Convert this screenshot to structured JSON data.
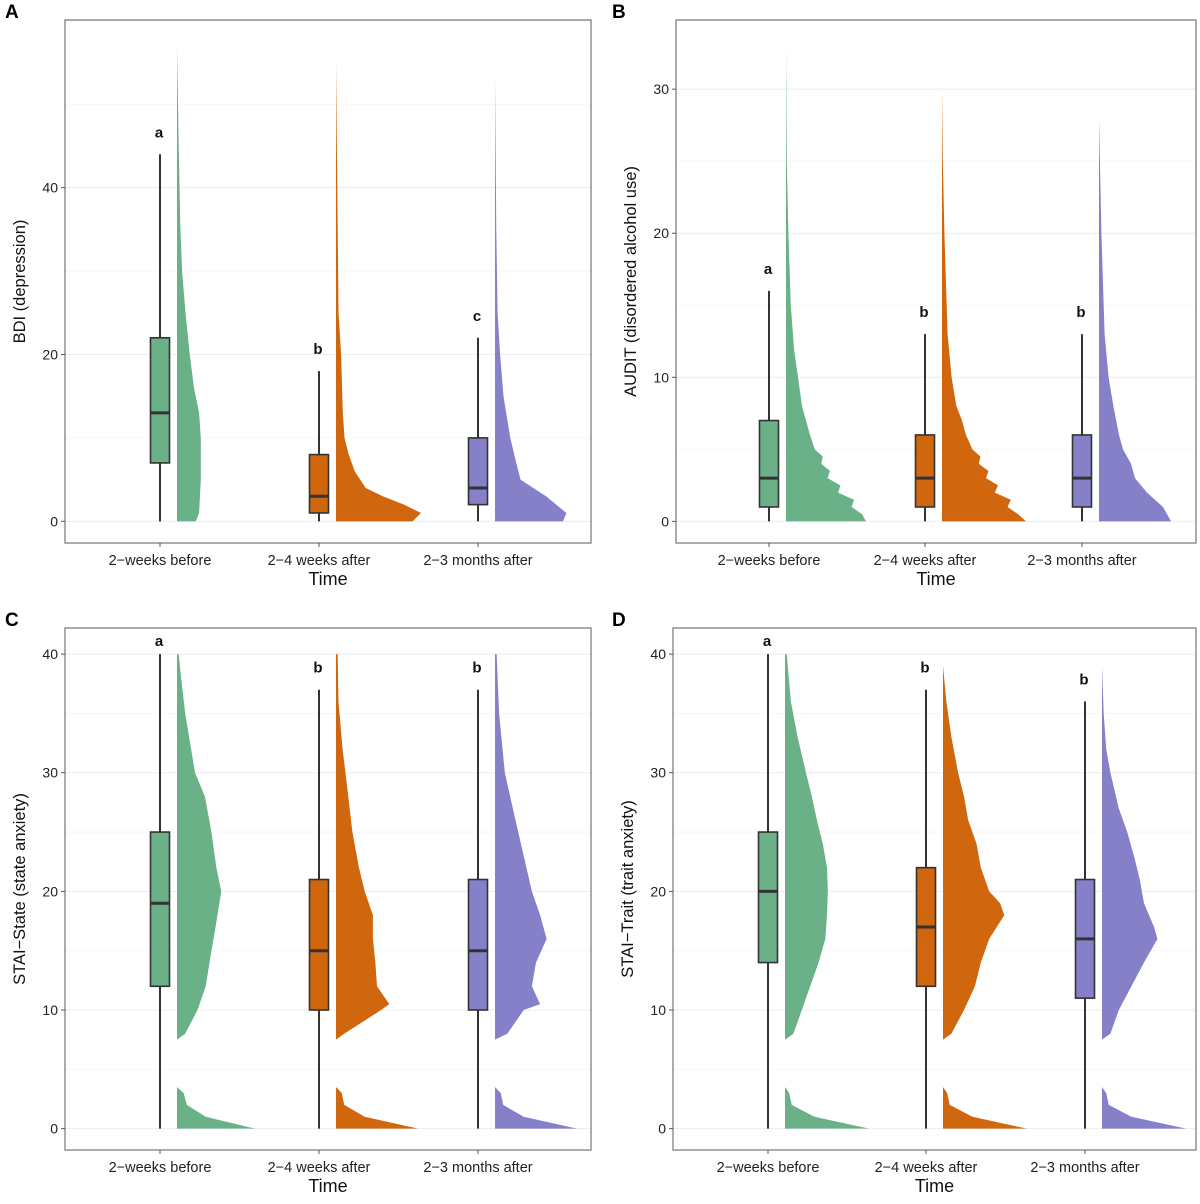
{
  "chart_data": [
    {
      "panel": "A",
      "type": "box+half-violin",
      "ylabel": "BDI (depression)",
      "xlabel": "Time",
      "categories": [
        "2−weeks before",
        "2−4 weeks after",
        "2−3 months after"
      ],
      "ylim": [
        -2.6,
        60.1
      ],
      "yticks": [
        0,
        20,
        40
      ],
      "grid": true,
      "colors": [
        "#6ab187",
        "#d0660e",
        "#8680c9"
      ],
      "letters": [
        "a",
        "b",
        "c"
      ],
      "boxes": [
        {
          "min": 0,
          "q1": 7,
          "median": 13,
          "q3": 22,
          "max": 44
        },
        {
          "min": 0,
          "q1": 1,
          "median": 3,
          "q3": 8,
          "max": 18
        },
        {
          "min": 0,
          "q1": 2,
          "median": 4,
          "q3": 10,
          "max": 22
        }
      ],
      "density": [
        [
          [
            0,
            0.22
          ],
          [
            1,
            0.26
          ],
          [
            5,
            0.28
          ],
          [
            10,
            0.28
          ],
          [
            13,
            0.26
          ],
          [
            16,
            0.2
          ],
          [
            20,
            0.15
          ],
          [
            25,
            0.1
          ],
          [
            30,
            0.06
          ],
          [
            35,
            0.04
          ],
          [
            45,
            0.02
          ],
          [
            57,
            0
          ]
        ],
        [
          [
            0,
            0.9
          ],
          [
            1,
            1.0
          ],
          [
            2,
            0.8
          ],
          [
            3,
            0.55
          ],
          [
            4,
            0.35
          ],
          [
            6,
            0.22
          ],
          [
            8,
            0.15
          ],
          [
            10,
            0.1
          ],
          [
            13,
            0.08
          ],
          [
            20,
            0.06
          ],
          [
            25,
            0.03
          ],
          [
            35,
            0.02
          ],
          [
            45,
            0.01
          ],
          [
            55,
            0
          ]
        ],
        [
          [
            0,
            0.8
          ],
          [
            1,
            0.84
          ],
          [
            3,
            0.6
          ],
          [
            5,
            0.3
          ],
          [
            7,
            0.25
          ],
          [
            10,
            0.18
          ],
          [
            15,
            0.1
          ],
          [
            20,
            0.06
          ],
          [
            25,
            0.03
          ],
          [
            35,
            0.015
          ],
          [
            53,
            0
          ]
        ]
      ]
    },
    {
      "panel": "B",
      "type": "box+half-violin",
      "ylabel": "AUDIT (disordered alcohol use)",
      "xlabel": "Time",
      "categories": [
        "2−weeks before",
        "2−4 weeks after",
        "2−3 months after"
      ],
      "ylim": [
        -1.5,
        34.8
      ],
      "yticks": [
        0,
        10,
        20,
        30
      ],
      "grid": true,
      "colors": [
        "#6ab187",
        "#d0660e",
        "#8680c9"
      ],
      "letters": [
        "a",
        "b",
        "b"
      ],
      "boxes": [
        {
          "min": 0,
          "q1": 1,
          "median": 3,
          "q3": 7,
          "max": 16
        },
        {
          "min": 0,
          "q1": 1,
          "median": 3,
          "q3": 6,
          "max": 13
        },
        {
          "min": 0,
          "q1": 1,
          "median": 3,
          "q3": 6,
          "max": 13
        }
      ],
      "density": [
        [
          [
            0,
            1.0
          ],
          [
            0.5,
            0.95
          ],
          [
            1,
            0.82
          ],
          [
            1.5,
            0.85
          ],
          [
            2,
            0.65
          ],
          [
            2.5,
            0.68
          ],
          [
            3,
            0.52
          ],
          [
            3.5,
            0.55
          ],
          [
            4,
            0.44
          ],
          [
            4.5,
            0.46
          ],
          [
            5,
            0.36
          ],
          [
            6,
            0.3
          ],
          [
            7,
            0.25
          ],
          [
            8,
            0.2
          ],
          [
            10,
            0.15
          ],
          [
            12,
            0.1
          ],
          [
            15,
            0.06
          ],
          [
            20,
            0.03
          ],
          [
            25,
            0.01
          ],
          [
            33,
            0
          ]
        ],
        [
          [
            0,
            1.05
          ],
          [
            0.5,
            0.95
          ],
          [
            1,
            0.82
          ],
          [
            1.5,
            0.86
          ],
          [
            2,
            0.66
          ],
          [
            2.5,
            0.7
          ],
          [
            3,
            0.55
          ],
          [
            3.5,
            0.58
          ],
          [
            4,
            0.46
          ],
          [
            4.5,
            0.48
          ],
          [
            5,
            0.38
          ],
          [
            6,
            0.3
          ],
          [
            7,
            0.25
          ],
          [
            8,
            0.18
          ],
          [
            10,
            0.12
          ],
          [
            13,
            0.07
          ],
          [
            20,
            0.03
          ],
          [
            25,
            0.01
          ],
          [
            30,
            0
          ]
        ],
        [
          [
            0,
            0.9
          ],
          [
            0.5,
            0.85
          ],
          [
            1,
            0.8
          ],
          [
            2,
            0.6
          ],
          [
            3,
            0.45
          ],
          [
            4,
            0.4
          ],
          [
            5,
            0.3
          ],
          [
            6,
            0.25
          ],
          [
            8,
            0.18
          ],
          [
            10,
            0.12
          ],
          [
            13,
            0.07
          ],
          [
            20,
            0.03
          ],
          [
            28,
            0
          ]
        ]
      ]
    },
    {
      "panel": "C",
      "type": "box+half-violin",
      "ylabel": "STAI−State (state anxiety)",
      "xlabel": "Time",
      "categories": [
        "2−weeks before",
        "2−4 weeks after",
        "2−3 months after"
      ],
      "ylim": [
        -1.8,
        42.2
      ],
      "yticks": [
        0,
        10,
        20,
        30,
        40
      ],
      "grid": true,
      "colors": [
        "#6ab187",
        "#d0660e",
        "#8680c9"
      ],
      "letters": [
        "a",
        "b",
        "b"
      ],
      "boxes": [
        {
          "min": 0,
          "q1": 12,
          "median": 19,
          "q3": 25,
          "max": 40
        },
        {
          "min": 0,
          "q1": 10,
          "median": 15,
          "q3": 21,
          "max": 37
        },
        {
          "min": 0,
          "q1": 10,
          "median": 15,
          "q3": 21,
          "max": 37
        }
      ],
      "density": [
        [
          [
            0,
            0.95
          ],
          [
            1,
            0.35
          ],
          [
            2,
            0.12
          ],
          [
            3,
            0.08
          ],
          [
            3.5,
            0
          ],
          [
            7.5,
            0
          ],
          [
            8,
            0.1
          ],
          [
            10,
            0.25
          ],
          [
            12,
            0.35
          ],
          [
            15,
            0.42
          ],
          [
            17,
            0.47
          ],
          [
            20,
            0.54
          ],
          [
            22,
            0.48
          ],
          [
            25,
            0.42
          ],
          [
            28,
            0.34
          ],
          [
            30,
            0.22
          ],
          [
            35,
            0.1
          ],
          [
            38,
            0.05
          ],
          [
            40,
            0.02
          ]
        ],
        [
          [
            0,
            1.0
          ],
          [
            1,
            0.35
          ],
          [
            2,
            0.1
          ],
          [
            3,
            0.07
          ],
          [
            3.5,
            0
          ],
          [
            7.5,
            0
          ],
          [
            8,
            0.1
          ],
          [
            10,
            0.55
          ],
          [
            10.5,
            0.65
          ],
          [
            12,
            0.5
          ],
          [
            14,
            0.48
          ],
          [
            16,
            0.45
          ],
          [
            18,
            0.45
          ],
          [
            20,
            0.35
          ],
          [
            22,
            0.28
          ],
          [
            25,
            0.2
          ],
          [
            28,
            0.15
          ],
          [
            32,
            0.08
          ],
          [
            36,
            0.03
          ],
          [
            40,
            0.02
          ]
        ],
        [
          [
            0,
            1.0
          ],
          [
            1,
            0.35
          ],
          [
            2,
            0.1
          ],
          [
            3,
            0.07
          ],
          [
            3.5,
            0
          ],
          [
            7.5,
            0
          ],
          [
            8,
            0.15
          ],
          [
            10,
            0.35
          ],
          [
            10.5,
            0.55
          ],
          [
            12,
            0.45
          ],
          [
            14,
            0.5
          ],
          [
            16,
            0.63
          ],
          [
            18,
            0.55
          ],
          [
            20,
            0.45
          ],
          [
            23,
            0.35
          ],
          [
            26,
            0.25
          ],
          [
            30,
            0.12
          ],
          [
            35,
            0.05
          ],
          [
            40,
            0.02
          ]
        ]
      ]
    },
    {
      "panel": "D",
      "type": "box+half-violin",
      "ylabel": "STAI−Trait (trait anxiety)",
      "xlabel": "Time",
      "categories": [
        "2−weeks before",
        "2−4 weeks after",
        "2−3 months after"
      ],
      "ylim": [
        -1.8,
        42.2
      ],
      "yticks": [
        0,
        10,
        20,
        30,
        40
      ],
      "grid": true,
      "colors": [
        "#6ab187",
        "#d0660e",
        "#8680c9"
      ],
      "letters": [
        "a",
        "b",
        "b"
      ],
      "boxes": [
        {
          "min": 0,
          "q1": 14,
          "median": 20,
          "q3": 25,
          "max": 40
        },
        {
          "min": 0,
          "q1": 12,
          "median": 17,
          "q3": 22,
          "max": 37
        },
        {
          "min": 0,
          "q1": 11,
          "median": 16,
          "q3": 21,
          "max": 36
        }
      ],
      "density": [
        [
          [
            0,
            1.0
          ],
          [
            1,
            0.35
          ],
          [
            2,
            0.08
          ],
          [
            3,
            0.05
          ],
          [
            3.5,
            0
          ],
          [
            7.5,
            0
          ],
          [
            8,
            0.1
          ],
          [
            10,
            0.2
          ],
          [
            12,
            0.3
          ],
          [
            14,
            0.4
          ],
          [
            16,
            0.48
          ],
          [
            18,
            0.5
          ],
          [
            20,
            0.51
          ],
          [
            22,
            0.5
          ],
          [
            24,
            0.45
          ],
          [
            26,
            0.38
          ],
          [
            28,
            0.32
          ],
          [
            30,
            0.25
          ],
          [
            33,
            0.15
          ],
          [
            36,
            0.07
          ],
          [
            40,
            0.02
          ]
        ],
        [
          [
            0,
            1.0
          ],
          [
            1,
            0.35
          ],
          [
            2,
            0.08
          ],
          [
            3,
            0.05
          ],
          [
            3.5,
            0
          ],
          [
            7.5,
            0
          ],
          [
            8,
            0.1
          ],
          [
            10,
            0.25
          ],
          [
            12,
            0.38
          ],
          [
            14,
            0.45
          ],
          [
            16,
            0.55
          ],
          [
            18,
            0.73
          ],
          [
            19,
            0.68
          ],
          [
            20,
            0.55
          ],
          [
            22,
            0.45
          ],
          [
            24,
            0.4
          ],
          [
            26,
            0.3
          ],
          [
            28,
            0.25
          ],
          [
            30,
            0.18
          ],
          [
            33,
            0.1
          ],
          [
            36,
            0.04
          ],
          [
            39,
            0
          ]
        ],
        [
          [
            0,
            1.0
          ],
          [
            1,
            0.35
          ],
          [
            2,
            0.08
          ],
          [
            3,
            0.05
          ],
          [
            3.5,
            0
          ],
          [
            7.5,
            0
          ],
          [
            8,
            0.1
          ],
          [
            10,
            0.2
          ],
          [
            12,
            0.35
          ],
          [
            14,
            0.5
          ],
          [
            16,
            0.66
          ],
          [
            17,
            0.62
          ],
          [
            19,
            0.5
          ],
          [
            21,
            0.45
          ],
          [
            23,
            0.38
          ],
          [
            25,
            0.3
          ],
          [
            27,
            0.2
          ],
          [
            30,
            0.1
          ],
          [
            32,
            0.05
          ],
          [
            35,
            0.02
          ],
          [
            39,
            0
          ]
        ]
      ]
    }
  ]
}
